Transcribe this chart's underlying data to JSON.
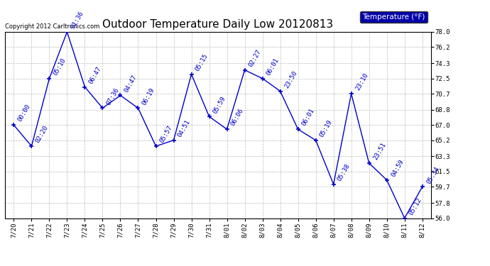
{
  "title": "Outdoor Temperature Daily Low 20120813",
  "legend_label": "Temperature (°F)",
  "copyright": "Copyright 2012 Carltronics.com",
  "x_labels": [
    "7/20",
    "7/21",
    "7/22",
    "7/23",
    "7/24",
    "7/25",
    "7/26",
    "7/27",
    "7/28",
    "7/29",
    "7/30",
    "7/31",
    "8/01",
    "8/02",
    "8/03",
    "8/04",
    "8/05",
    "8/06",
    "8/07",
    "8/08",
    "8/09",
    "8/10",
    "8/11",
    "8/12"
  ],
  "y_values": [
    67.0,
    64.5,
    72.5,
    78.0,
    71.5,
    69.0,
    70.5,
    69.0,
    64.5,
    65.2,
    73.0,
    68.0,
    66.5,
    73.5,
    72.5,
    71.0,
    66.5,
    65.2,
    60.0,
    70.7,
    62.5,
    60.5,
    56.0,
    59.7
  ],
  "point_labels": [
    "00:00",
    "02:20",
    "05:10",
    "01:36",
    "06:47",
    "07:36",
    "04:47",
    "06:19",
    "05:57",
    "04:51",
    "05:15",
    "05:59",
    "06:06",
    "02:27",
    "06:01",
    "23:50",
    "06:01",
    "05:19",
    "05:38",
    "23:10",
    "23:51",
    "04:59",
    "05:12",
    "05:34"
  ],
  "line_color": "#0000cc",
  "marker_color": "#0000cc",
  "background_color": "#ffffff",
  "grid_color": "#bbbbbb",
  "ylim_min": 56.0,
  "ylim_max": 78.0,
  "yticks": [
    56.0,
    57.8,
    59.7,
    61.5,
    63.3,
    65.2,
    67.0,
    68.8,
    70.7,
    72.5,
    74.3,
    76.2,
    78.0
  ],
  "title_fontsize": 11,
  "label_fontsize": 6.5,
  "annotation_fontsize": 6.5,
  "copyright_fontsize": 6,
  "legend_bg": "#0000aa",
  "legend_fg": "#ffffff"
}
